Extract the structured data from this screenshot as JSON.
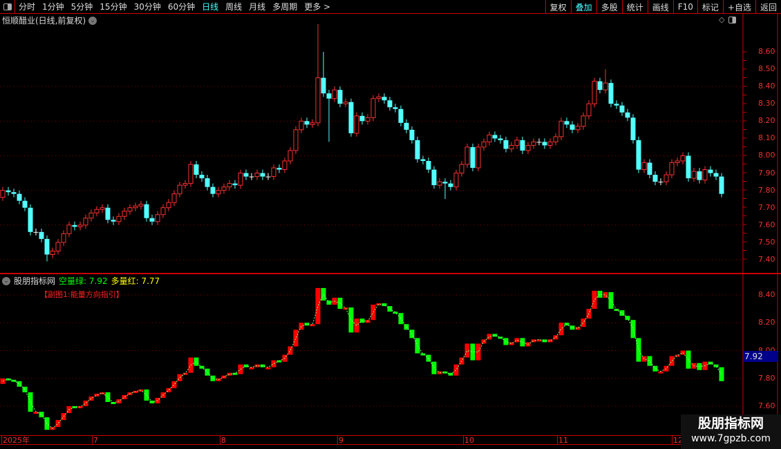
{
  "toolbar": {
    "periods": [
      "分时",
      "1分钟",
      "5分钟",
      "15分钟",
      "30分钟",
      "60分钟",
      "日线",
      "周线",
      "月线",
      "多周期",
      "更多 >"
    ],
    "active_period": "日线",
    "buttons": [
      "复权",
      "叠加",
      "多股",
      "统计",
      "画线",
      "F10",
      "标记",
      "+自选",
      "返回"
    ],
    "active_button": "叠加"
  },
  "main": {
    "title": "恒顺醋业(日线,前复权)",
    "axis_labels": [
      "8.60",
      "8.50",
      "8.40",
      "8.30",
      "8.20",
      "8.10",
      "8.00",
      "7.90",
      "7.80",
      "7.70",
      "7.60",
      "7.50",
      "7.40"
    ],
    "ylim": [
      7.4,
      8.6
    ]
  },
  "indicator": {
    "name": "股朋指标网",
    "green_label": "空量绿: 7.92",
    "red_label": "多量红: 7.77",
    "subtitle": "【副图1:能量方向指引】",
    "axis_labels": [
      "8.40",
      "8.20",
      "8.00",
      "7.80",
      "7.60"
    ],
    "ylim": [
      7.6,
      8.4
    ],
    "current_tag": "7.92"
  },
  "dates": [
    "2025年",
    "7",
    "8",
    "9",
    "10",
    "11",
    "12"
  ],
  "watermark": {
    "name": "股朋指标网",
    "url": "www.7gpzb.com"
  },
  "colors": {
    "up": "#ff3232",
    "down": "#54ffff",
    "doji": "#ffffff",
    "ind_up": "#ff0000",
    "ind_down": "#00ff00",
    "grid": "#8b0000",
    "axis": "#cc0000"
  },
  "chart_data": {
    "type": "candlestick",
    "close": [
      7.8,
      7.79,
      7.78,
      7.74,
      7.7,
      7.56,
      7.56,
      7.52,
      7.43,
      7.45,
      7.5,
      7.55,
      7.6,
      7.59,
      7.6,
      7.64,
      7.67,
      7.69,
      7.7,
      7.63,
      7.62,
      7.65,
      7.68,
      7.7,
      7.71,
      7.72,
      7.64,
      7.62,
      7.66,
      7.7,
      7.73,
      7.78,
      7.83,
      7.84,
      7.95,
      7.89,
      7.87,
      7.82,
      7.78,
      7.8,
      7.82,
      7.84,
      7.83,
      7.9,
      7.88,
      7.88,
      7.9,
      7.88,
      7.88,
      7.93,
      7.92,
      7.97,
      8.03,
      8.15,
      8.2,
      8.18,
      8.19,
      8.45,
      8.36,
      8.33,
      8.38,
      8.3,
      8.31,
      8.13,
      8.23,
      8.2,
      8.22,
      8.33,
      8.34,
      8.32,
      8.28,
      8.27,
      8.19,
      8.15,
      8.09,
      7.98,
      7.97,
      7.92,
      7.83,
      7.85,
      7.84,
      7.82,
      7.9,
      7.95,
      8.05,
      7.93,
      8.05,
      8.08,
      8.12,
      8.1,
      8.09,
      8.04,
      8.06,
      8.09,
      8.03,
      8.06,
      8.08,
      8.08,
      8.06,
      8.08,
      8.11,
      8.2,
      8.18,
      8.15,
      8.17,
      8.23,
      8.3,
      8.43,
      8.38,
      8.42,
      8.3,
      8.29,
      8.25,
      8.22,
      8.09,
      7.92,
      7.96,
      7.89,
      7.85,
      7.85,
      7.89,
      7.96,
      7.97,
      8.0,
      7.87,
      7.91,
      7.86,
      7.92,
      7.9,
      7.88,
      7.78
    ],
    "first_open": 7.76,
    "high_extremes": {
      "57": 8.76,
      "58": 8.6,
      "109": 8.5
    },
    "low_extremes": {
      "8": 7.39,
      "59": 8.08,
      "80": 7.75
    }
  }
}
